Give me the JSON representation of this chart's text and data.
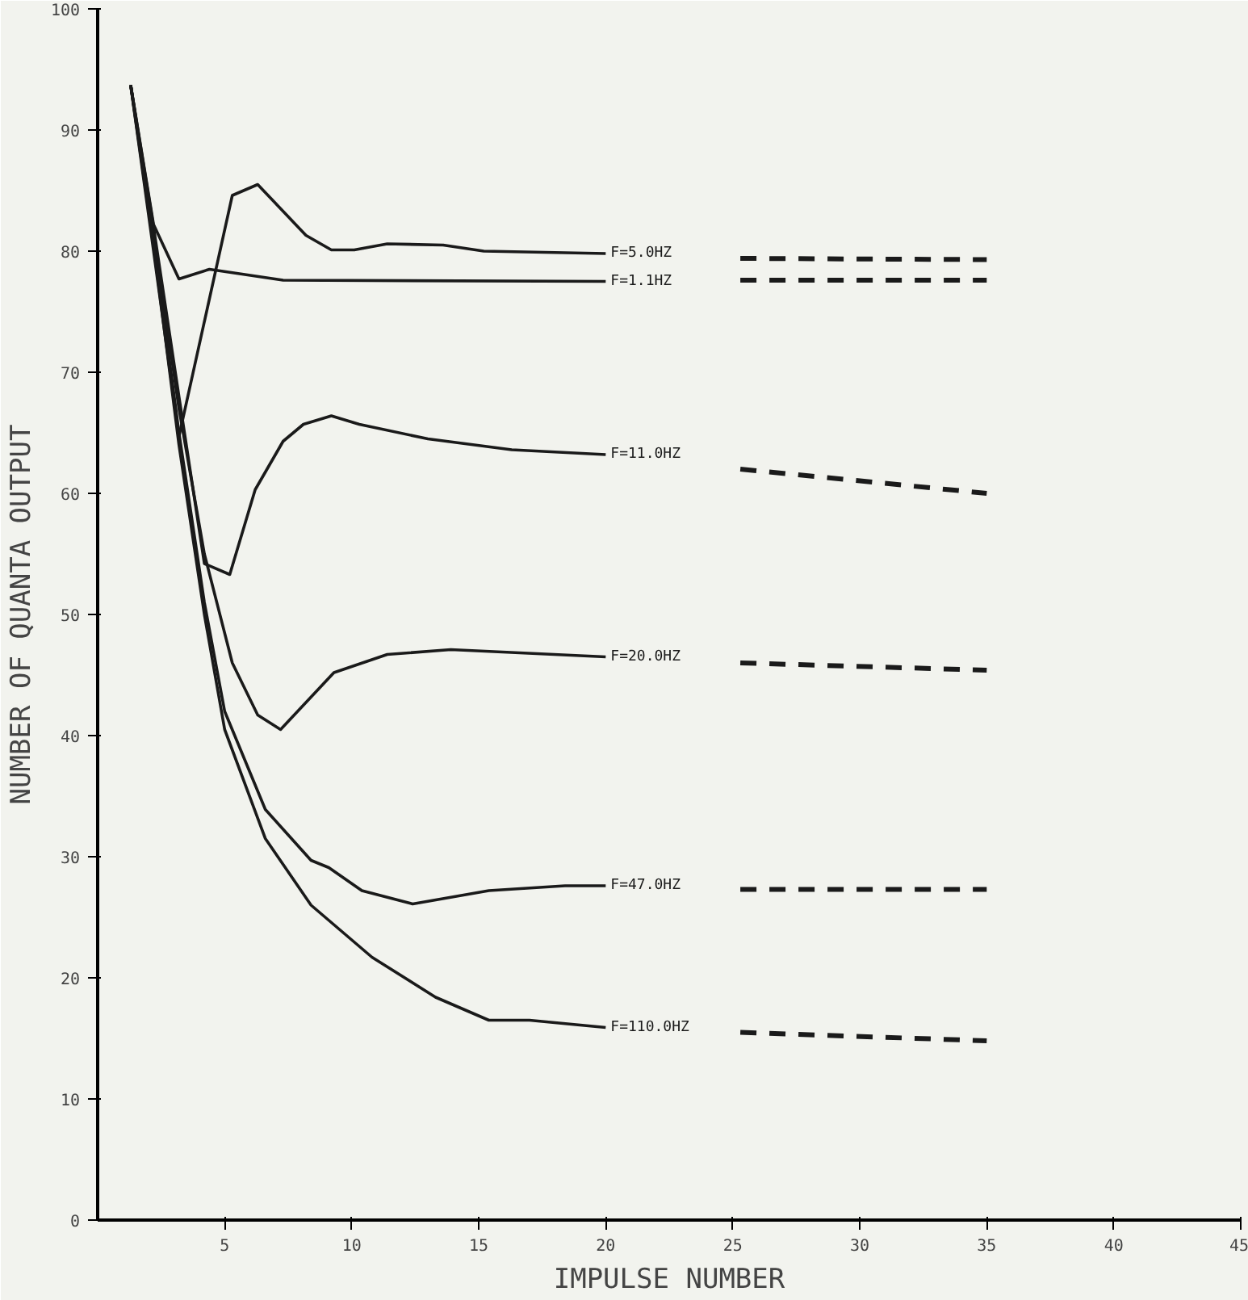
{
  "chart_data": {
    "type": "line",
    "xlabel": "IMPULSE NUMBER",
    "ylabel": "NUMBER OF QUANTA OUTPUT",
    "xlim": [
      0,
      45
    ],
    "ylim": [
      0,
      100
    ],
    "xticks": [
      5,
      10,
      15,
      20,
      25,
      30,
      35,
      40,
      45
    ],
    "yticks": [
      0,
      10,
      20,
      30,
      40,
      50,
      60,
      70,
      80,
      90,
      100
    ],
    "grid": false,
    "legend": false,
    "marker": "none",
    "line_style": "solid",
    "series": [
      {
        "name": "F=5.0HZ",
        "color": "#1a1a1a",
        "x": [
          1.3,
          2.2,
          3.2,
          5.3,
          6.3,
          8.2,
          9.2,
          10.1,
          11.4,
          13.6,
          15.2,
          20
        ],
        "values": [
          93.7,
          80,
          64.7,
          84.6,
          85.5,
          81.3,
          80.1,
          80.1,
          80.6,
          80.5,
          80.0,
          79.8
        ]
      },
      {
        "name": "F=1.1HZ",
        "color": "#1a1a1a",
        "x": [
          1.3,
          2.2,
          3.2,
          4.4,
          7.3,
          20
        ],
        "values": [
          93.7,
          82.2,
          77.7,
          78.5,
          77.6,
          77.5
        ]
      },
      {
        "name": "F=11.0HZ",
        "color": "#1a1a1a",
        "x": [
          1.3,
          2.2,
          3.2,
          4.2,
          5.2,
          6.2,
          7.3,
          8.1,
          9.2,
          10.3,
          13.0,
          16.3,
          20
        ],
        "values": [
          93.7,
          82,
          68,
          54.2,
          53.3,
          60.3,
          64.3,
          65.7,
          66.4,
          65.7,
          64.5,
          63.6,
          63.2
        ]
      },
      {
        "name": "F=20.0HZ",
        "color": "#1a1a1a",
        "x": [
          1.3,
          2.2,
          3.2,
          4.2,
          5.3,
          6.3,
          7.2,
          9.3,
          11.4,
          13.9,
          20
        ],
        "values": [
          93.7,
          81.5,
          67,
          55,
          46,
          41.7,
          40.5,
          45.2,
          46.7,
          47.1,
          46.5
        ]
      },
      {
        "name": "F=47.0HZ",
        "color": "#1a1a1a",
        "x": [
          1.3,
          2.2,
          3.2,
          4.2,
          5.0,
          6.6,
          8.4,
          9.1,
          10.4,
          12.4,
          15.4,
          18.4,
          20
        ],
        "values": [
          93.7,
          81,
          65,
          51,
          42,
          33.9,
          29.7,
          29.1,
          27.2,
          26.1,
          27.2,
          27.6,
          27.6
        ]
      },
      {
        "name": "F=110.0HZ",
        "color": "#1a1a1a",
        "x": [
          1.3,
          2.2,
          3.2,
          4.2,
          5.0,
          6.6,
          8.4,
          10.8,
          13.3,
          15.4,
          17.0,
          20
        ],
        "values": [
          93.7,
          80.5,
          64,
          50,
          40.5,
          31.5,
          26.0,
          21.7,
          18.4,
          16.5,
          16.5,
          15.9
        ]
      },
      {
        "color": "#1a1a1a",
        "line_style": "dashed",
        "x": [
          25.3,
          35
        ],
        "values": [
          79.4,
          79.3
        ]
      },
      {
        "color": "#1a1a1a",
        "line_style": "dashed",
        "x": [
          25.3,
          35
        ],
        "values": [
          77.6,
          77.6
        ]
      },
      {
        "color": "#1a1a1a",
        "line_style": "dashed",
        "x": [
          25.3,
          35
        ],
        "values": [
          62.0,
          60.0
        ]
      },
      {
        "color": "#1a1a1a",
        "line_style": "dashed",
        "x": [
          25.3,
          35
        ],
        "values": [
          46.0,
          45.4
        ]
      },
      {
        "color": "#1a1a1a",
        "line_style": "dashed",
        "x": [
          25.3,
          35
        ],
        "values": [
          27.3,
          27.3
        ]
      },
      {
        "color": "#1a1a1a",
        "line_style": "dashed",
        "x": [
          25.3,
          35
        ],
        "values": [
          15.5,
          14.8
        ]
      }
    ]
  }
}
